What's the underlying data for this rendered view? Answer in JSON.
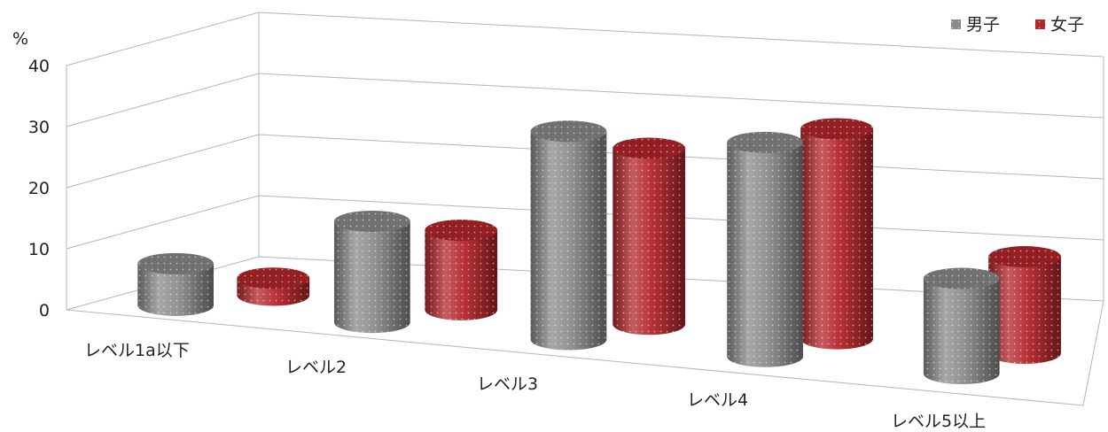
{
  "chart_data": {
    "type": "bar",
    "variant": "3d-cylinder",
    "unit_label": "%",
    "ylim": [
      0,
      40
    ],
    "y_ticks": [
      "0",
      "10",
      "20",
      "30",
      "40"
    ],
    "categories": [
      "レベル1a以下",
      "レベル2",
      "レベル3",
      "レベル4",
      "レベル5以上"
    ],
    "series": [
      {
        "name": "男子",
        "color": "#8a8a8a",
        "values": [
          7,
          17,
          35,
          36,
          16
        ]
      },
      {
        "name": "女子",
        "color": "#b3262b",
        "values": [
          3,
          14,
          31,
          37,
          17
        ]
      }
    ],
    "legend_position": "top-right",
    "grid": true
  }
}
